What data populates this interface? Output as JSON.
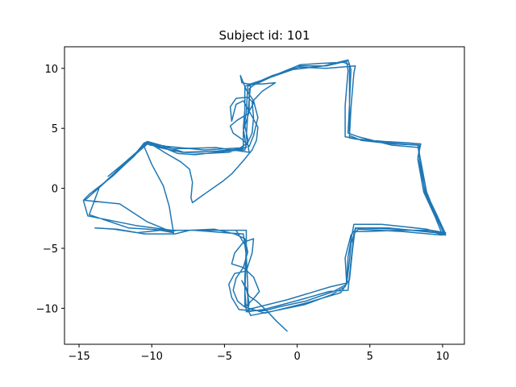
{
  "chart_data": {
    "type": "line",
    "title": "Subject id: 101",
    "xlabel": "",
    "ylabel": "",
    "xlim": [
      -16,
      11.5
    ],
    "ylim": [
      -13,
      11.8
    ],
    "xticks": [
      -15,
      -10,
      -5,
      0,
      5,
      10
    ],
    "yticks": [
      -10,
      -5,
      0,
      5,
      10
    ],
    "grid": false,
    "line_color": "#1f77b4",
    "series": [
      {
        "points": [
          [
            -0.7,
            -11.9
          ],
          [
            -1.4,
            -11.1
          ],
          [
            -2.1,
            -10.2
          ],
          [
            -2.8,
            -9.4
          ],
          [
            -3.3,
            -9.0
          ],
          [
            -3.6,
            -8.2
          ],
          [
            -3.8,
            -7.7
          ],
          [
            -3.5,
            -8.3
          ],
          [
            -3.3,
            -9.6
          ],
          [
            -3.4,
            -10.1
          ],
          [
            -3.2,
            -10.6
          ],
          [
            -1.5,
            -10.2
          ],
          [
            0.5,
            -9.7
          ],
          [
            2.3,
            -8.9
          ],
          [
            3.3,
            -8.2
          ],
          [
            3.4,
            -7.9
          ],
          [
            3.3,
            -5.8
          ],
          [
            3.7,
            -3.9
          ],
          [
            4.1,
            -3.3
          ],
          [
            7.0,
            -3.4
          ],
          [
            10.0,
            -3.7
          ],
          [
            10.2,
            -3.8
          ],
          [
            9.6,
            -2.2
          ],
          [
            8.8,
            -0.2
          ],
          [
            8.3,
            2.6
          ],
          [
            8.5,
            3.7
          ],
          [
            7.5,
            3.8
          ],
          [
            6.0,
            3.9
          ],
          [
            4.2,
            4.1
          ],
          [
            3.3,
            4.3
          ],
          [
            3.3,
            6.9
          ],
          [
            3.5,
            9.8
          ],
          [
            3.4,
            10.6
          ],
          [
            2.0,
            10.2
          ],
          [
            0.0,
            10.2
          ],
          [
            -1.2,
            9.6
          ],
          [
            -3.0,
            8.6
          ],
          [
            -3.3,
            8.3
          ],
          [
            -3.3,
            6.4
          ],
          [
            -3.6,
            5.2
          ],
          [
            -3.4,
            4.1
          ],
          [
            -3.6,
            3.2
          ],
          [
            -4.9,
            3.1
          ],
          [
            -7.0,
            2.8
          ],
          [
            -8.2,
            2.9
          ],
          [
            -9.2,
            3.4
          ],
          [
            -10.2,
            3.8
          ],
          [
            -10.4,
            3.8
          ],
          [
            -11.2,
            2.7
          ],
          [
            -12.2,
            1.6
          ],
          [
            -13.3,
            0.4
          ],
          [
            -14.6,
            -1.0
          ],
          [
            -12.2,
            -1.3
          ],
          [
            -10.3,
            -2.8
          ],
          [
            -8.7,
            -3.6
          ],
          [
            -8.3,
            -3.5
          ],
          [
            -6.0,
            -3.5
          ],
          [
            -3.7,
            -3.5
          ],
          [
            -3.5,
            -3.5
          ],
          [
            -3.5,
            -6.0
          ],
          [
            -3.6,
            -8.5
          ],
          [
            -3.5,
            -10.3
          ],
          [
            -2.3,
            -10.1
          ],
          [
            0.2,
            -9.3
          ],
          [
            2.2,
            -8.6
          ],
          [
            3.5,
            -8.5
          ],
          [
            3.7,
            -6.1
          ],
          [
            3.9,
            -3.8
          ],
          [
            4.2,
            -3.4
          ],
          [
            7.2,
            -3.6
          ],
          [
            10.0,
            -3.9
          ],
          [
            9.5,
            -2.4
          ],
          [
            8.7,
            -0.3
          ],
          [
            8.3,
            2.4
          ],
          [
            8.4,
            3.4
          ],
          [
            6.5,
            3.6
          ],
          [
            4.2,
            4.3
          ],
          [
            3.5,
            4.6
          ],
          [
            3.6,
            7.0
          ],
          [
            3.6,
            10.3
          ],
          [
            3.2,
            10.5
          ],
          [
            1.5,
            10.4
          ],
          [
            0.2,
            10.3
          ],
          [
            -1.7,
            9.3
          ],
          [
            -3.2,
            8.7
          ],
          [
            -3.4,
            6.2
          ],
          [
            -3.5,
            4.3
          ],
          [
            -3.3,
            3.0
          ],
          [
            -5.6,
            3.4
          ],
          [
            -8.5,
            3.3
          ],
          [
            -10.1,
            3.6
          ],
          [
            -10.5,
            3.8
          ],
          [
            -11.4,
            2.5
          ],
          [
            -12.7,
            1.0
          ],
          [
            -14.3,
            -0.5
          ],
          [
            -14.7,
            -1.0
          ],
          [
            -14.4,
            -2.3
          ],
          [
            -11.1,
            -3.1
          ],
          [
            -8.6,
            -3.5
          ],
          [
            -7.1,
            -3.5
          ],
          [
            -5.0,
            -3.7
          ],
          [
            -3.7,
            -3.8
          ],
          [
            -3.5,
            -5.6
          ],
          [
            -3.4,
            -8.1
          ],
          [
            -3.4,
            -10.1
          ],
          [
            -0.7,
            -9.3
          ],
          [
            2.3,
            -8.2
          ],
          [
            3.4,
            -7.9
          ],
          [
            3.5,
            -5.7
          ],
          [
            3.9,
            -3.0
          ],
          [
            5.8,
            -3.0
          ],
          [
            8.9,
            -3.4
          ],
          [
            10.1,
            -3.8
          ],
          [
            9.5,
            -2.2
          ],
          [
            8.8,
            -0.4
          ],
          [
            8.4,
            2.7
          ],
          [
            8.3,
            3.6
          ],
          [
            6.6,
            3.7
          ],
          [
            4.4,
            4.0
          ],
          [
            3.6,
            4.4
          ],
          [
            3.7,
            6.7
          ],
          [
            3.9,
            9.6
          ],
          [
            4.0,
            10.2
          ],
          [
            2.0,
            10.0
          ],
          [
            0.1,
            10.1
          ],
          [
            -1.7,
            9.4
          ],
          [
            -3.4,
            8.5
          ],
          [
            -3.5,
            6.4
          ],
          [
            -3.7,
            4.7
          ],
          [
            -3.7,
            3.3
          ],
          [
            -5.5,
            3.1
          ],
          [
            -7.9,
            3.0
          ],
          [
            -9.5,
            3.4
          ],
          [
            -10.3,
            3.7
          ],
          [
            -12.1,
            1.8
          ],
          [
            -13.6,
            0.1
          ],
          [
            -14.3,
            -2.2
          ],
          [
            -11.6,
            -3.3
          ],
          [
            -9.0,
            -3.5
          ],
          [
            -6.4,
            -3.5
          ],
          [
            -4.2,
            -3.5
          ],
          [
            -3.5,
            -4.9
          ],
          [
            -3.6,
            -7.4
          ],
          [
            -3.6,
            -9.9
          ],
          [
            -2.2,
            -10.4
          ],
          [
            0.5,
            -9.6
          ],
          [
            3.0,
            -8.7
          ],
          [
            3.6,
            -7.6
          ],
          [
            3.8,
            -5.2
          ],
          [
            4.0,
            -3.3
          ],
          [
            6.3,
            -3.3
          ],
          [
            9.5,
            -3.7
          ],
          [
            10.2,
            -3.9
          ],
          [
            9.6,
            -2.4
          ],
          [
            8.9,
            -0.3
          ],
          [
            8.4,
            2.9
          ],
          [
            8.4,
            3.6
          ],
          [
            6.1,
            3.8
          ],
          [
            4.1,
            4.1
          ],
          [
            3.6,
            4.2
          ],
          [
            3.6,
            7.1
          ],
          [
            3.7,
            9.9
          ],
          [
            3.5,
            10.7
          ],
          [
            1.8,
            10.2
          ],
          [
            -0.3,
            9.9
          ],
          [
            -2.2,
            9.1
          ],
          [
            -3.6,
            8.5
          ],
          [
            -3.6,
            6.6
          ],
          [
            -3.7,
            5.0
          ],
          [
            -3.5,
            3.4
          ],
          [
            -6.4,
            3.2
          ],
          [
            -9.0,
            3.5
          ],
          [
            -10.3,
            3.8
          ],
          [
            -12.0,
            2.0
          ],
          [
            -13.0,
            1.0
          ],
          [
            -10.2,
            3.8
          ],
          [
            -9.0,
            2.9
          ],
          [
            -8.0,
            2.2
          ],
          [
            -7.4,
            1.6
          ],
          [
            -7.2,
            0.5
          ],
          [
            -7.3,
            -0.8
          ],
          [
            -7.2,
            -1.2
          ],
          [
            -6.4,
            -0.5
          ],
          [
            -5.1,
            0.6
          ],
          [
            -4.5,
            1.2
          ],
          [
            -3.7,
            2.3
          ],
          [
            -3.1,
            3.2
          ],
          [
            -2.8,
            4.0
          ],
          [
            -2.7,
            5.1
          ],
          [
            -3.2,
            6.2
          ],
          [
            -3.7,
            7.3
          ],
          [
            -4.2,
            7.0
          ],
          [
            -4.5,
            5.6
          ],
          [
            -4.6,
            6.8
          ],
          [
            -4.2,
            7.5
          ],
          [
            -3.4,
            7.6
          ],
          [
            -3.0,
            7.1
          ],
          [
            -3.4,
            6.2
          ],
          [
            -4.1,
            5.7
          ],
          [
            -4.6,
            5.2
          ],
          [
            -4.4,
            4.6
          ],
          [
            -3.8,
            4.1
          ],
          [
            -3.3,
            3.5
          ],
          [
            -3.0,
            4.4
          ],
          [
            -2.7,
            5.9
          ],
          [
            -3.0,
            7.3
          ],
          [
            -3.5,
            8.2
          ],
          [
            -3.9,
            9.4
          ],
          [
            -3.8,
            8.8
          ],
          [
            -3.4,
            8.7
          ],
          [
            -2.4,
            8.7
          ],
          [
            -1.5,
            8.8
          ],
          [
            -2.4,
            8.1
          ],
          [
            -3.1,
            7.2
          ],
          [
            -3.0,
            5.9
          ],
          [
            -3.1,
            4.6
          ],
          [
            -3.4,
            3.8
          ],
          [
            -4.0,
            3.3
          ],
          [
            -4.7,
            3.0
          ],
          [
            -6.4,
            2.9
          ],
          [
            -7.8,
            3.0
          ],
          [
            -9.4,
            3.6
          ],
          [
            -10.3,
            3.9
          ],
          [
            -10.6,
            3.7
          ],
          [
            -10.0,
            2.0
          ],
          [
            -9.2,
            0.2
          ],
          [
            -8.8,
            -1.5
          ],
          [
            -8.6,
            -3.0
          ],
          [
            -8.5,
            -3.7
          ],
          [
            -9.4,
            -3.5
          ],
          [
            -11.0,
            -3.7
          ],
          [
            -12.6,
            -3.4
          ],
          [
            -13.9,
            -3.3
          ],
          [
            -12.4,
            -3.4
          ],
          [
            -10.5,
            -3.8
          ],
          [
            -9.2,
            -3.8
          ],
          [
            -8.4,
            -3.8
          ],
          [
            -7.4,
            -3.5
          ],
          [
            -5.7,
            -3.4
          ],
          [
            -4.3,
            -3.8
          ],
          [
            -3.6,
            -4.2
          ],
          [
            -3.4,
            -5.3
          ],
          [
            -3.7,
            -6.6
          ],
          [
            -4.2,
            -7.5
          ],
          [
            -4.4,
            -8.5
          ],
          [
            -4.1,
            -9.4
          ],
          [
            -3.6,
            -9.9
          ],
          [
            -3.0,
            -9.2
          ],
          [
            -2.6,
            -8.6
          ],
          [
            -3.0,
            -7.4
          ],
          [
            -3.7,
            -6.6
          ],
          [
            -4.5,
            -6.3
          ],
          [
            -4.3,
            -5.4
          ],
          [
            -3.7,
            -4.5
          ],
          [
            -3.0,
            -4.2
          ],
          [
            -3.1,
            -5.4
          ],
          [
            -3.5,
            -6.9
          ],
          [
            -4.3,
            -7.1
          ],
          [
            -4.7,
            -8.0
          ],
          [
            -4.5,
            -9.1
          ],
          [
            -4.0,
            -10.1
          ],
          [
            -3.3,
            -10.2
          ],
          [
            -2.2,
            -10.2
          ],
          [
            -1.3,
            -9.9
          ],
          [
            0.6,
            -9.4
          ],
          [
            2.5,
            -8.6
          ],
          [
            3.4,
            -8.0
          ],
          [
            3.6,
            -6.0
          ],
          [
            3.7,
            -4.6
          ],
          [
            4.0,
            -3.6
          ],
          [
            4.8,
            -3.6
          ],
          [
            7.0,
            -3.5
          ],
          [
            9.2,
            -3.5
          ],
          [
            10.2,
            -3.7
          ]
        ]
      }
    ]
  }
}
